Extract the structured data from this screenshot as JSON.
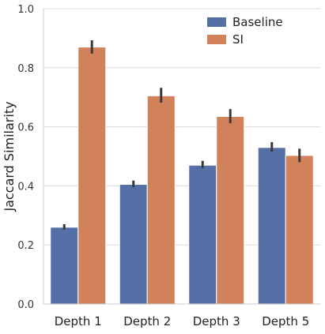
{
  "chart_data": {
    "type": "bar",
    "categories": [
      "Depth 1",
      "Depth 2",
      "Depth 3",
      "Depth 5"
    ],
    "series": [
      {
        "name": "Baseline",
        "color": "#5470a7",
        "values": [
          0.26,
          0.405,
          0.47,
          0.53
        ],
        "error_low": [
          0.252,
          0.395,
          0.46,
          0.516
        ],
        "error_high": [
          0.27,
          0.418,
          0.485,
          0.548
        ]
      },
      {
        "name": "SI",
        "color": "#d1825b",
        "values": [
          0.87,
          0.705,
          0.635,
          0.503
        ],
        "error_low": [
          0.848,
          0.682,
          0.612,
          0.48
        ],
        "error_high": [
          0.893,
          0.732,
          0.66,
          0.526
        ]
      }
    ],
    "title": "",
    "xlabel": "",
    "ylabel": "Jaccard Similarity",
    "ylim": [
      0,
      1.0
    ],
    "yticks": [
      "0.0",
      "0.2",
      "0.4",
      "0.6",
      "0.8",
      "1.0"
    ],
    "grid": "horizontal",
    "legend_position": "top-right"
  }
}
